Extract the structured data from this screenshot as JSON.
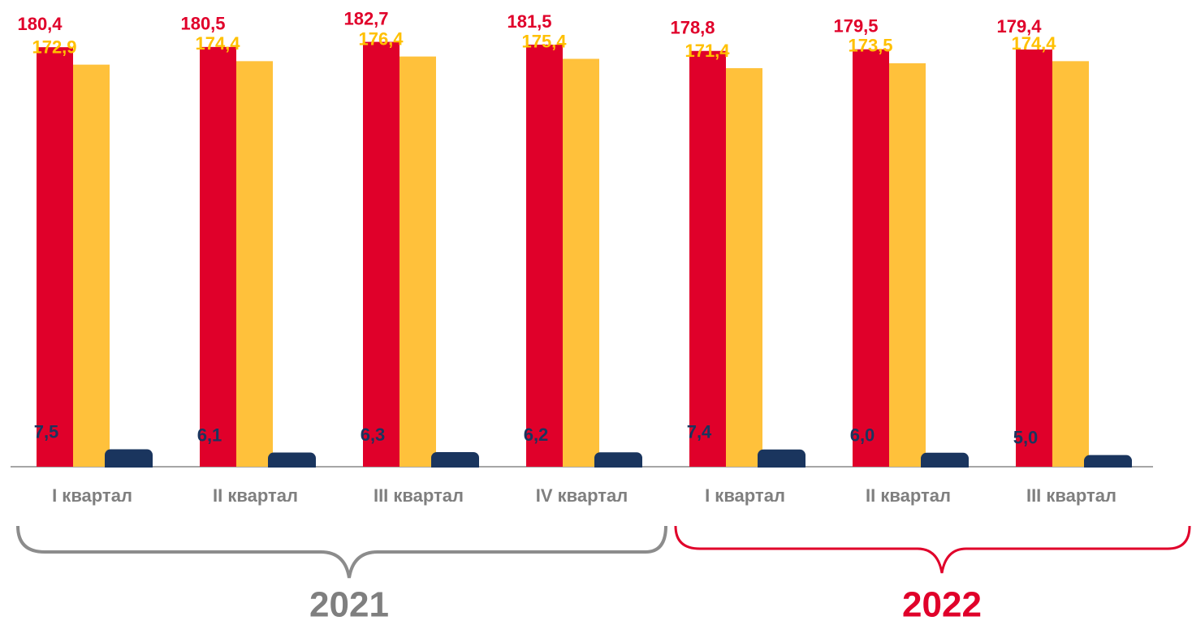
{
  "chart_data": {
    "type": "bar",
    "categories": [
      "I квартал",
      "II квартал",
      "III квартал",
      "IV квартал",
      "I квартал",
      "II квартал",
      "III квартал"
    ],
    "series": [
      {
        "color": "#e0002a",
        "values": [
          180.4,
          180.5,
          182.7,
          181.5,
          178.8,
          179.5,
          179.4
        ],
        "value_labels": [
          "180,4",
          "180,5",
          "182,7",
          "181,5",
          "178,8",
          "179,5",
          "179,4"
        ]
      },
      {
        "color": "#ffc13b",
        "values": [
          172.9,
          174.4,
          176.4,
          175.4,
          171.4,
          173.5,
          174.4
        ],
        "value_labels": [
          "172,9",
          "174,4",
          "176,4",
          "175,4",
          "171,4",
          "173,5",
          "174,4"
        ]
      },
      {
        "color": "#1a355e",
        "values": [
          7.5,
          6.1,
          6.3,
          6.2,
          7.4,
          6.0,
          5.0
        ],
        "value_labels": [
          "7,5",
          "6,1",
          "6,3",
          "6,2",
          "7,4",
          "6,0",
          "5,0"
        ]
      }
    ],
    "annotations": [
      "2021",
      "2022"
    ],
    "ylim": [
      0,
      200
    ]
  }
}
